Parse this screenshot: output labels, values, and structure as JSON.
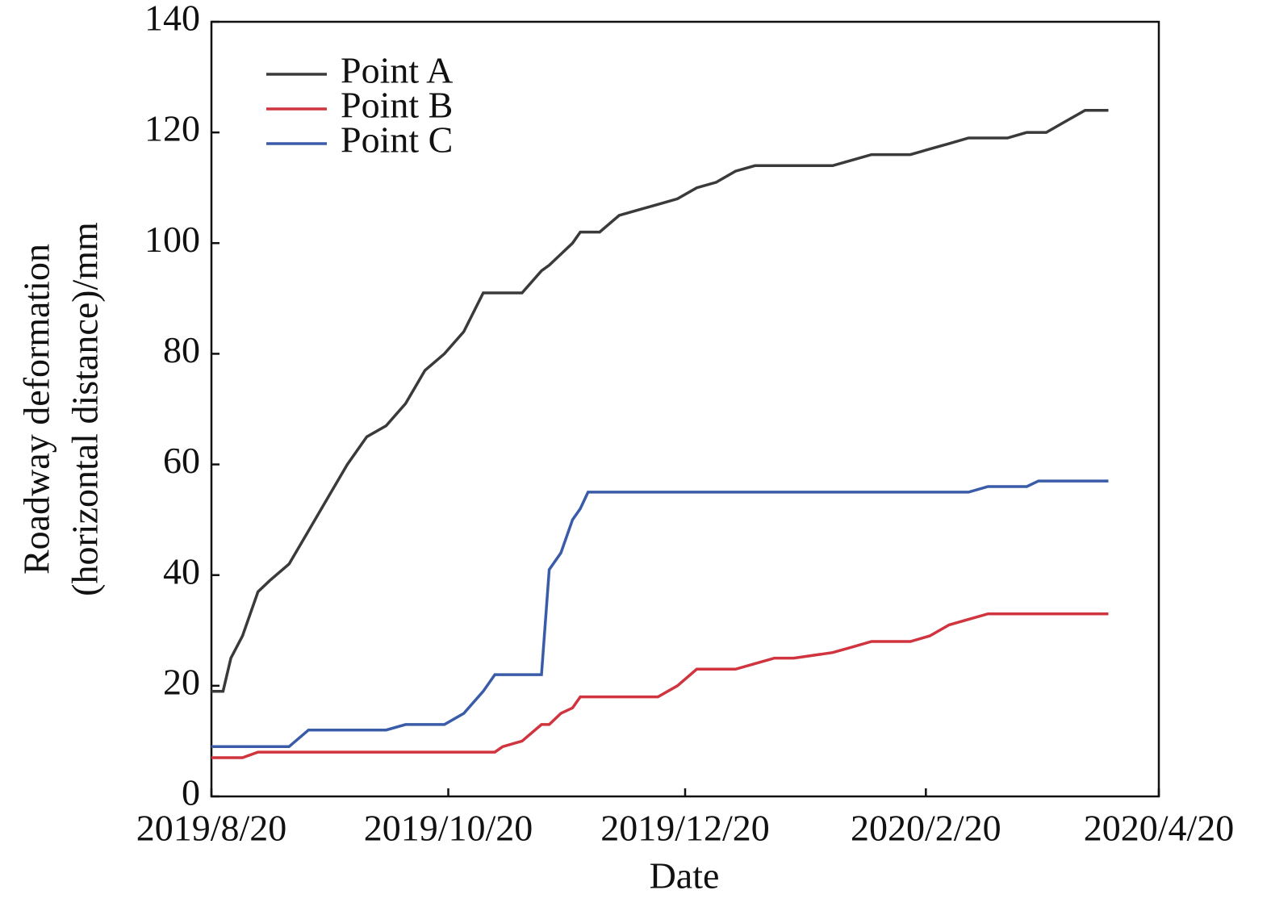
{
  "chart_data": {
    "type": "line",
    "x_label": "Date",
    "y_label": [
      "Roadway deformation",
      "(horizontal distance)/mm"
    ],
    "x": [
      "2019/8/20",
      "2019/8/23",
      "2019/8/25",
      "2019/8/28",
      "2019/9/1",
      "2019/9/4",
      "2019/9/9",
      "2019/9/14",
      "2019/9/19",
      "2019/9/24",
      "2019/9/29",
      "2019/10/4",
      "2019/10/9",
      "2019/10/14",
      "2019/10/19",
      "2019/10/24",
      "2019/10/29",
      "2019/11/1",
      "2019/11/3",
      "2019/11/8",
      "2019/11/13",
      "2019/11/15",
      "2019/11/18",
      "2019/11/21",
      "2019/11/23",
      "2019/11/25",
      "2019/11/28",
      "2019/12/3",
      "2019/12/8",
      "2019/12/13",
      "2019/12/18",
      "2019/12/23",
      "2019/12/28",
      "2020/1/2",
      "2020/1/7",
      "2020/1/12",
      "2020/1/17",
      "2020/1/27",
      "2020/2/1",
      "2020/2/6",
      "2020/2/16",
      "2020/2/21",
      "2020/2/26",
      "2020/3/2",
      "2020/3/7",
      "2020/3/12",
      "2020/3/17",
      "2020/3/20",
      "2020/3/22",
      "2020/3/27",
      "2020/4/1",
      "2020/4/7"
    ],
    "series": [
      {
        "name": "Point A",
        "color": "#3a3a3a",
        "values": [
          19,
          19,
          25,
          29,
          37,
          39,
          42,
          48,
          54,
          60,
          65,
          67,
          71,
          77,
          80,
          84,
          91,
          91,
          91,
          91,
          95,
          96,
          98,
          100,
          102,
          102,
          102,
          105,
          106,
          107,
          108,
          110,
          111,
          113,
          114,
          114,
          114,
          114,
          115,
          116,
          116,
          117,
          118,
          119,
          119,
          119,
          120,
          120,
          120,
          122,
          124,
          124
        ]
      },
      {
        "name": "Point B",
        "color": "#d0343f",
        "values": [
          7,
          7,
          7,
          7,
          8,
          8,
          8,
          8,
          8,
          8,
          8,
          8,
          8,
          8,
          8,
          8,
          8,
          8,
          9,
          10,
          13,
          13,
          15,
          16,
          18,
          18,
          18,
          18,
          18,
          18,
          20,
          23,
          23,
          23,
          24,
          25,
          25,
          26,
          27,
          28,
          28,
          29,
          31,
          32,
          33,
          33,
          33,
          33,
          33,
          33,
          33,
          33
        ]
      },
      {
        "name": "Point C",
        "color": "#3a5ca8",
        "values": [
          9,
          9,
          9,
          9,
          9,
          9,
          9,
          12,
          12,
          12,
          12,
          12,
          13,
          13,
          13,
          15,
          19,
          22,
          22,
          22,
          22,
          41,
          44,
          50,
          52,
          55,
          55,
          55,
          55,
          55,
          55,
          55,
          55,
          55,
          55,
          55,
          55,
          55,
          55,
          55,
          55,
          55,
          55,
          55,
          56,
          56,
          56,
          57,
          57,
          57,
          57,
          57
        ]
      }
    ],
    "xlim": [
      "2019/8/20",
      "2020/4/20"
    ],
    "xticks": [
      "2019/8/20",
      "2019/10/20",
      "2019/12/20",
      "2020/2/20",
      "2020/4/20"
    ],
    "ylim": [
      0,
      140
    ],
    "yticks": [
      0,
      20,
      40,
      60,
      80,
      100,
      120,
      140
    ],
    "legend": "upper left"
  }
}
